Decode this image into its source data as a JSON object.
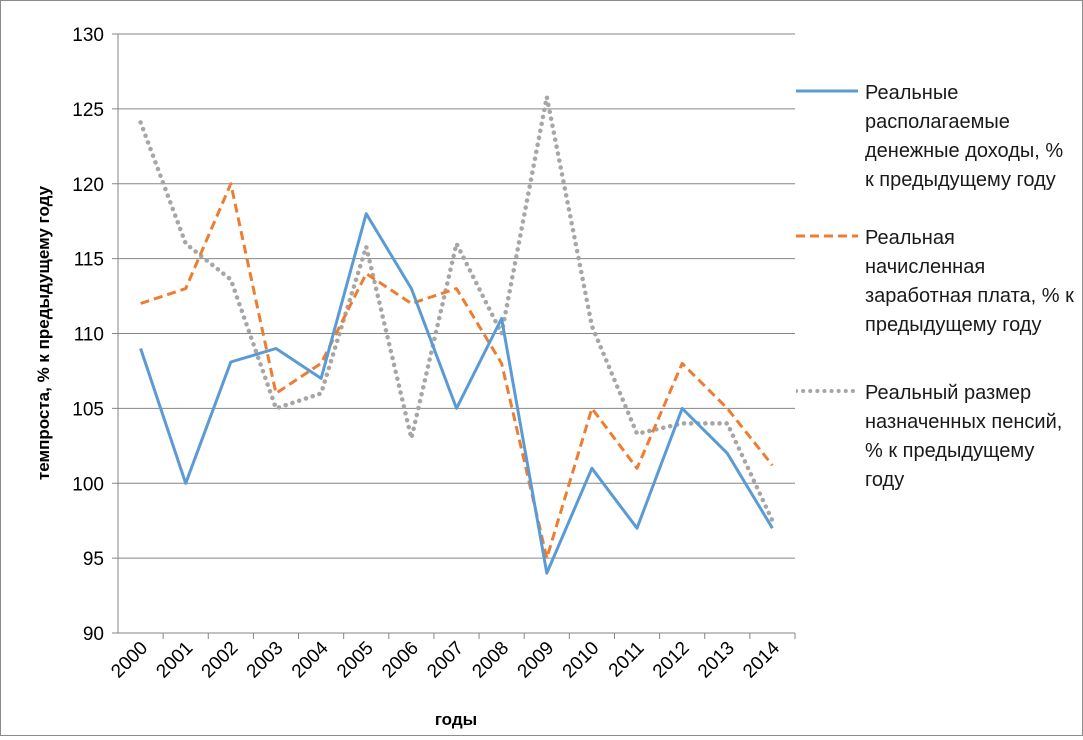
{
  "chart_data": {
    "type": "line",
    "categories": [
      "2000",
      "2001",
      "2002",
      "2003",
      "2004",
      "2005",
      "2006",
      "2007",
      "2008",
      "2009",
      "2010",
      "2011",
      "2012",
      "2013",
      "2014"
    ],
    "series": [
      {
        "name": "Реальные располагаемые денежные доходы, % к предыдущему году",
        "values": [
          109,
          100,
          108.1,
          109,
          107,
          118,
          113,
          105,
          111,
          94,
          101,
          97,
          105,
          102,
          97
        ],
        "color": "#5b9bd5",
        "style": "solid"
      },
      {
        "name": "Реальная начисленная заработная плата,  % к предыдущему году",
        "values": [
          112,
          113,
          120,
          106,
          108,
          114,
          112,
          113,
          108,
          95,
          105,
          101,
          108,
          105,
          101.2
        ],
        "color": "#ed7d31",
        "style": "dashed"
      },
      {
        "name": "Реальный размер назначенных пенсий, % к предыдущему году",
        "values": [
          124.1,
          116,
          113.6,
          105,
          106,
          115.8,
          103,
          116,
          110,
          125.8,
          110.5,
          103.3,
          104,
          104,
          97.5
        ],
        "color": "#a6a6a6",
        "style": "dotted"
      }
    ],
    "yticks": [
      "90",
      "95",
      "100",
      "105",
      "110",
      "115",
      "120",
      "125",
      "130"
    ],
    "ylim": [
      90,
      130
    ],
    "xlabel": "годы",
    "ylabel": "темпроста, % к предыдущему году",
    "grid": true,
    "legend": "right"
  }
}
